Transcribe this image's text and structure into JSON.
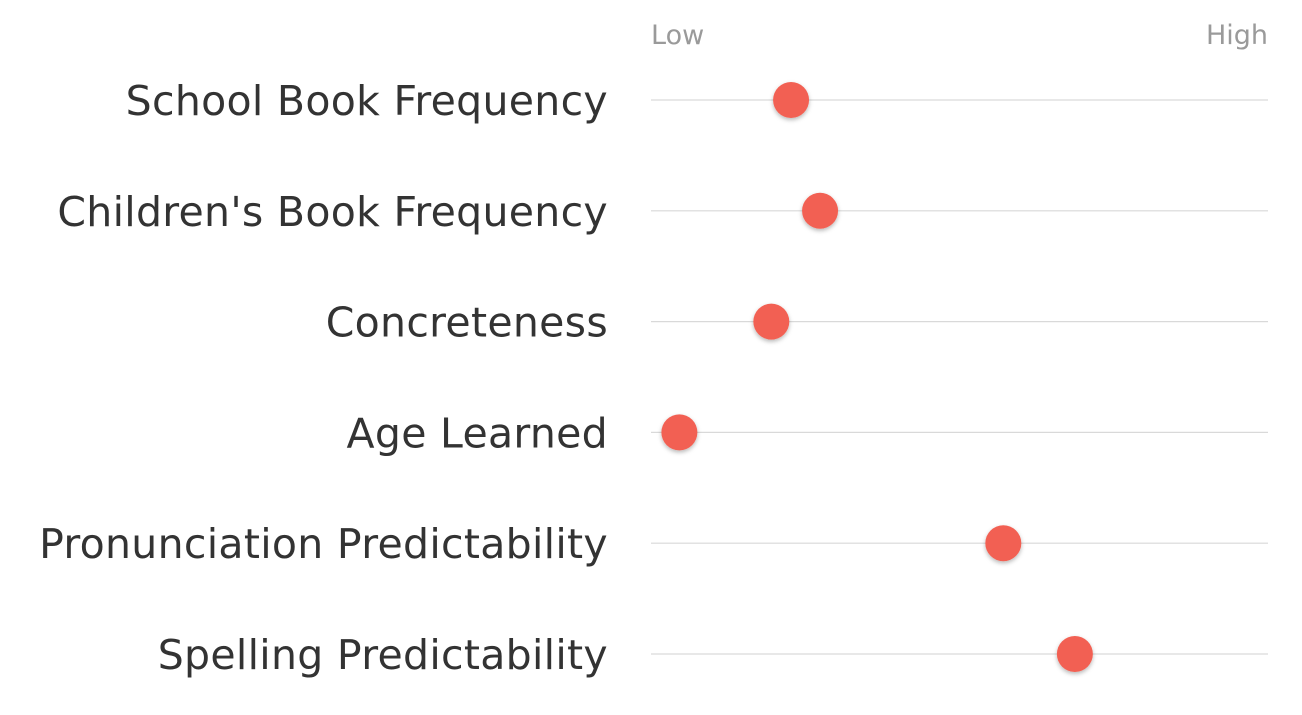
{
  "chart_data": {
    "type": "scatter",
    "title": "",
    "scale_min_label": "Low",
    "scale_max_label": "High",
    "xlim": [
      0,
      1
    ],
    "grid": false,
    "legend": "none",
    "marker_color": "#f26152",
    "track_color": "#d9d9d9",
    "rows": [
      {
        "label": "School Book Frequency",
        "value": 0.227
      },
      {
        "label": "Children's Book Frequency",
        "value": 0.274
      },
      {
        "label": "Concreteness",
        "value": 0.195
      },
      {
        "label": "Age Learned",
        "value": 0.046
      },
      {
        "label": "Pronunciation Predictability",
        "value": 0.571
      },
      {
        "label": "Spelling Predictability",
        "value": 0.687
      }
    ]
  }
}
